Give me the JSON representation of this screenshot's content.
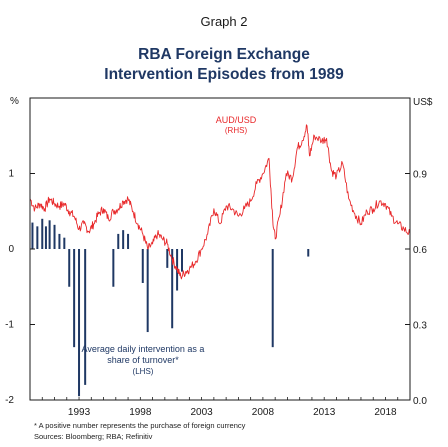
{
  "header": {
    "graph_number": "Graph 2",
    "title_line1": "RBA Foreign Exchange",
    "title_line2": "Intervention Episodes from 1989"
  },
  "footnotes": {
    "note": "*    A positive number represents the purchase of foreign currency",
    "sources": "Sources:  Bloomberg; RBA; Refinitiv"
  },
  "colors": {
    "line": "#e8282a",
    "bars": "#1f3864",
    "frame": "#1a1a1a",
    "title": "#1f3864"
  },
  "chart_data": {
    "type": "bar+line",
    "x_ticks": [
      "1993",
      "1998",
      "2003",
      "2008",
      "2013",
      "2018"
    ],
    "x_range": [
      1989,
      2020
    ],
    "left_axis": {
      "unit": "%",
      "ticks": [
        "1",
        "0",
        "-1",
        "-2"
      ],
      "tick_values": [
        1,
        0,
        -1,
        -2
      ],
      "range": [
        -2,
        2
      ]
    },
    "right_axis": {
      "unit": "US$",
      "ticks": [
        "0.9",
        "0.6",
        "0.3",
        "0.0"
      ],
      "tick_values": [
        0.9,
        0.6,
        0.3,
        0.0
      ],
      "range": [
        0.0,
        1.2
      ]
    },
    "gridlines": false,
    "series": [
      {
        "name": "AUD/USD (RHS)",
        "label_line1": "AUD/USD",
        "label_line2": "(RHS)",
        "kind": "line",
        "axis": "right",
        "points": [
          [
            1989.0,
            0.8
          ],
          [
            1989.4,
            0.76
          ],
          [
            1989.8,
            0.78
          ],
          [
            1990.2,
            0.76
          ],
          [
            1990.6,
            0.8
          ],
          [
            1991.0,
            0.78
          ],
          [
            1991.4,
            0.77
          ],
          [
            1991.8,
            0.78
          ],
          [
            1992.2,
            0.75
          ],
          [
            1992.6,
            0.73
          ],
          [
            1993.0,
            0.68
          ],
          [
            1993.4,
            0.7
          ],
          [
            1993.8,
            0.67
          ],
          [
            1994.2,
            0.7
          ],
          [
            1994.6,
            0.74
          ],
          [
            1995.0,
            0.76
          ],
          [
            1995.4,
            0.72
          ],
          [
            1995.8,
            0.75
          ],
          [
            1996.2,
            0.76
          ],
          [
            1996.6,
            0.79
          ],
          [
            1997.0,
            0.8
          ],
          [
            1997.4,
            0.75
          ],
          [
            1997.8,
            0.7
          ],
          [
            1998.2,
            0.66
          ],
          [
            1998.6,
            0.6
          ],
          [
            1999.0,
            0.62
          ],
          [
            1999.4,
            0.66
          ],
          [
            1999.8,
            0.64
          ],
          [
            2000.2,
            0.62
          ],
          [
            2000.6,
            0.56
          ],
          [
            2001.0,
            0.52
          ],
          [
            2001.3,
            0.49
          ],
          [
            2001.7,
            0.51
          ],
          [
            2002.0,
            0.52
          ],
          [
            2002.5,
            0.55
          ],
          [
            2003.0,
            0.6
          ],
          [
            2003.5,
            0.66
          ],
          [
            2004.0,
            0.76
          ],
          [
            2004.5,
            0.7
          ],
          [
            2005.0,
            0.77
          ],
          [
            2005.5,
            0.76
          ],
          [
            2006.0,
            0.73
          ],
          [
            2006.5,
            0.76
          ],
          [
            2007.0,
            0.79
          ],
          [
            2007.5,
            0.86
          ],
          [
            2008.0,
            0.9
          ],
          [
            2008.5,
            0.96
          ],
          [
            2008.8,
            0.72
          ],
          [
            2009.0,
            0.64
          ],
          [
            2009.4,
            0.74
          ],
          [
            2009.9,
            0.9
          ],
          [
            2010.4,
            0.88
          ],
          [
            2010.8,
            1.0
          ],
          [
            2011.2,
            1.03
          ],
          [
            2011.6,
            1.09
          ],
          [
            2011.8,
            0.97
          ],
          [
            2012.2,
            1.05
          ],
          [
            2012.8,
            1.03
          ],
          [
            2013.2,
            1.04
          ],
          [
            2013.6,
            0.91
          ],
          [
            2014.0,
            0.89
          ],
          [
            2014.5,
            0.94
          ],
          [
            2015.0,
            0.8
          ],
          [
            2015.5,
            0.74
          ],
          [
            2016.0,
            0.7
          ],
          [
            2016.5,
            0.75
          ],
          [
            2017.0,
            0.76
          ],
          [
            2017.5,
            0.79
          ],
          [
            2018.0,
            0.78
          ],
          [
            2018.5,
            0.73
          ],
          [
            2019.0,
            0.7
          ],
          [
            2019.5,
            0.68
          ],
          [
            2020.0,
            0.66
          ]
        ]
      },
      {
        "name": "Average daily intervention as a share of turnover* (LHS)",
        "label_line1": "Average daily intervention as a",
        "label_line2": "share of turnover*",
        "label_line3": "(LHS)",
        "kind": "bar",
        "axis": "left",
        "bars": [
          [
            1989.2,
            0.35
          ],
          [
            1989.6,
            0.3
          ],
          [
            1990.0,
            0.4
          ],
          [
            1990.3,
            0.3
          ],
          [
            1990.6,
            0.38
          ],
          [
            1991.0,
            0.32
          ],
          [
            1991.4,
            0.2
          ],
          [
            1991.8,
            0.15
          ],
          [
            1992.2,
            -0.5
          ],
          [
            1992.6,
            -1.3
          ],
          [
            1993.0,
            -1.95
          ],
          [
            1993.5,
            -1.8
          ],
          [
            1995.8,
            -0.5
          ],
          [
            1996.2,
            0.2
          ],
          [
            1996.6,
            0.25
          ],
          [
            1997.0,
            0.2
          ],
          [
            1998.2,
            -0.45
          ],
          [
            1998.6,
            -1.1
          ],
          [
            2000.2,
            -0.25
          ],
          [
            2000.6,
            -1.05
          ],
          [
            2001.0,
            -0.55
          ],
          [
            2001.4,
            -0.3
          ],
          [
            2008.8,
            -1.3
          ],
          [
            2011.7,
            -0.1
          ]
        ]
      }
    ]
  }
}
